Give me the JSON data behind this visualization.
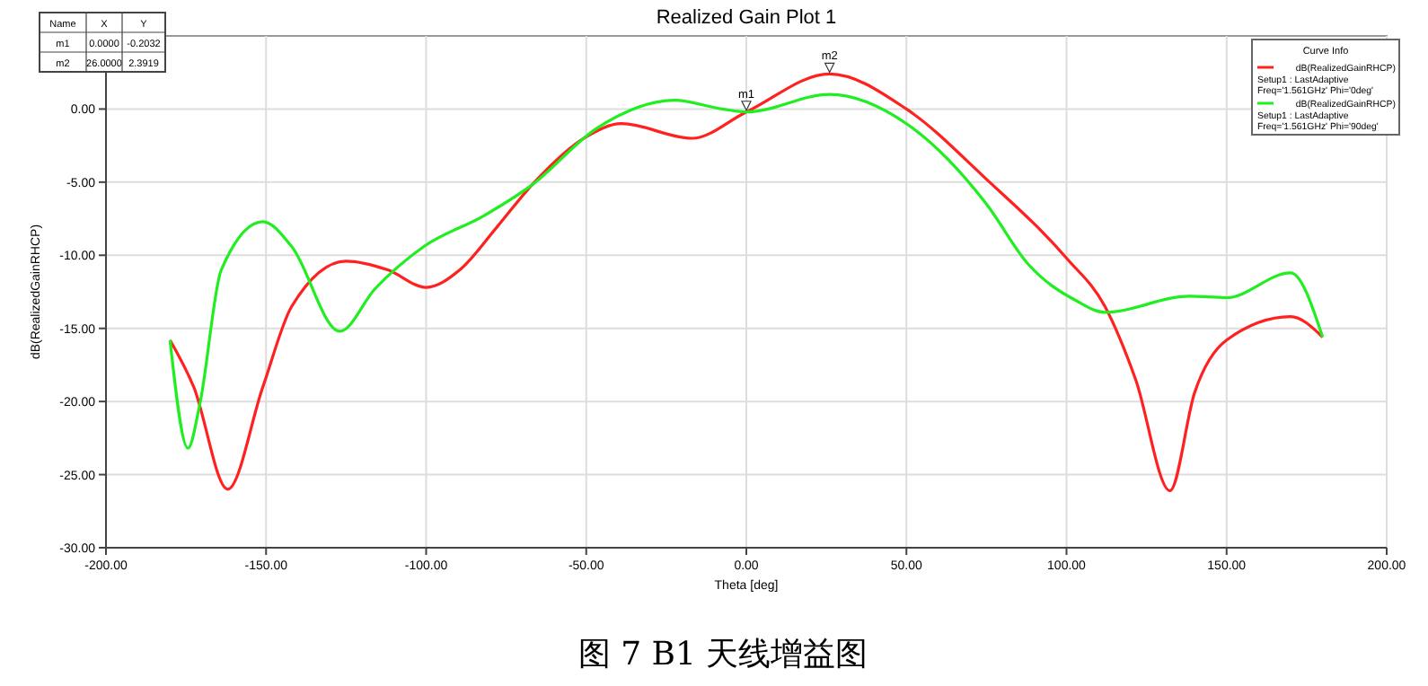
{
  "chart_data": {
    "type": "line",
    "title": "Realized Gain Plot 1",
    "xlabel": "Theta [deg]",
    "ylabel": "dB(RealizedGainRHCP)",
    "legend_title": "Curve Info",
    "legend": "top right",
    "grid": true,
    "marker": "none",
    "line_style": "solid",
    "xlim": [
      -200,
      200
    ],
    "ylim": [
      -30,
      5
    ],
    "xticks": [
      {
        "value": -200,
        "label": "-200.00"
      },
      {
        "value": -150,
        "label": "-150.00"
      },
      {
        "value": -100,
        "label": "-100.00"
      },
      {
        "value": -50,
        "label": "-50.00"
      },
      {
        "value": 0,
        "label": "0.00"
      },
      {
        "value": 50,
        "label": "50.00"
      },
      {
        "value": 100,
        "label": "100.00"
      },
      {
        "value": 150,
        "label": "150.00"
      },
      {
        "value": 200,
        "label": "200.00"
      }
    ],
    "yticks": [
      {
        "value": -30,
        "label": "-30.00"
      },
      {
        "value": -25,
        "label": "-25.00"
      },
      {
        "value": -20,
        "label": "-20.00"
      },
      {
        "value": -15,
        "label": "-15.00"
      },
      {
        "value": -10,
        "label": "-10.00"
      },
      {
        "value": -5,
        "label": "-5.00"
      },
      {
        "value": 0,
        "label": "0.00"
      }
    ],
    "series": [
      {
        "name": "dB(RealizedGainRHCP)\nSetup1 : LastAdaptive\nFreq='1.561GHz' Phi='0deg'",
        "color": "#ff2020",
        "x": [
          -180,
          -172.6,
          -162,
          -151,
          -142,
          -125,
          -112,
          -100,
          -89.5,
          -78,
          -67,
          -50,
          -39,
          -17,
          0,
          26,
          50,
          75,
          100,
          112,
          121.6,
          132.3,
          140,
          150,
          170,
          180
        ],
        "values": [
          -15.8,
          -19,
          -26,
          -19,
          -13.5,
          -10.4,
          -11,
          -12.2,
          -11,
          -8.1,
          -5.2,
          -1.9,
          -1,
          -2,
          -0.2,
          2.4,
          0,
          -4.8,
          -10.2,
          -13.5,
          -18.5,
          -26.1,
          -19.4,
          -15.8,
          -14.2,
          -15.6
        ]
      },
      {
        "name": "dB(RealizedGainRHCP)\nSetup1 : LastAdaptive\nFreq='1.561GHz' Phi='90deg'",
        "color": "#20ee20",
        "x": [
          -180,
          -174.4,
          -170.7,
          -164,
          -151,
          -142,
          -127,
          -116,
          -100.7,
          -82,
          -67,
          -46.6,
          -22.4,
          -7.5,
          0,
          26,
          50,
          75,
          88,
          103,
          112,
          138.4,
          150,
          170,
          180
        ],
        "values": [
          -15.8,
          -23.2,
          -20.2,
          -11,
          -7.7,
          -9.4,
          -15.2,
          -12.3,
          -9.4,
          -7.3,
          -5.2,
          -1.3,
          0.6,
          0,
          -0.2,
          1,
          -1,
          -6.5,
          -10.6,
          -13.1,
          -13.9,
          -12.8,
          -12.9,
          -11.2,
          -15.6
        ]
      }
    ],
    "annotations": [
      "Name",
      "X",
      "Y",
      "m1",
      "0.0000",
      "-0.2032",
      "m2",
      "26.0000",
      "2.3919",
      "图 7 B1 天线增益图",
      {
        "text": "m1",
        "x": 0,
        "y": -0.2032
      },
      {
        "text": "m2",
        "x": 26,
        "y": 2.3919
      }
    ]
  }
}
